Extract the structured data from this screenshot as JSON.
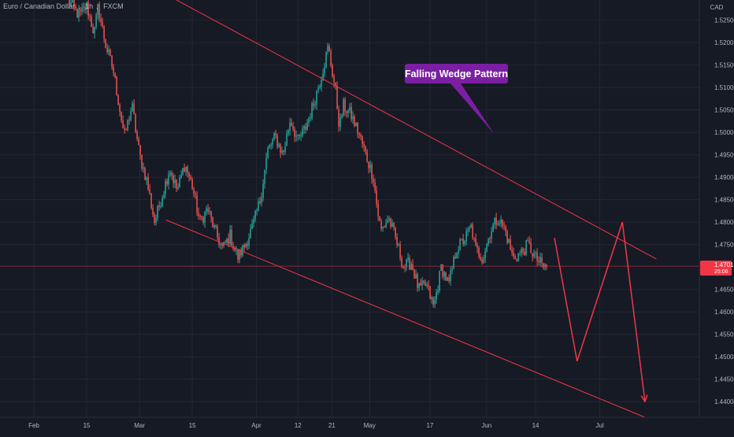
{
  "header": {
    "symbol_name": "Euro / Canadian Dollar",
    "interval": "1h",
    "exchange": "FXCM"
  },
  "chart_data": {
    "type": "candlestick",
    "title": "Euro / Canadian Dollar, 1h, FXCM",
    "currency": "CAD",
    "grid": true,
    "colors": {
      "background": "#161a25",
      "up": "#26a69a",
      "down": "#ef5350",
      "drawing": "#f23645",
      "callout": "#7b1fa2",
      "price_label": "#f23645",
      "axis_text": "#b2b5be"
    },
    "y_ticks": [
      "1.52500",
      "1.52000",
      "1.51500",
      "1.51000",
      "1.50500",
      "1.50000",
      "1.49500",
      "1.49000",
      "1.48500",
      "1.48000",
      "1.47500",
      "1.46500",
      "1.46000",
      "1.45500",
      "1.45000",
      "1.44500",
      "1.44000"
    ],
    "ylim": [
      1.4365,
      1.5295
    ],
    "x_ticks": [
      {
        "label": "Feb",
        "x": 0
      },
      {
        "label": "15",
        "x": 14
      },
      {
        "label": "Mar",
        "x": 28
      },
      {
        "label": "15",
        "x": 42
      },
      {
        "label": "Apr",
        "x": 59
      },
      {
        "label": "12",
        "x": 70
      },
      {
        "label": "21",
        "x": 79
      },
      {
        "label": "May",
        "x": 89
      },
      {
        "label": "17",
        "x": 105
      },
      {
        "label": "Jun",
        "x": 120
      },
      {
        "label": "14",
        "x": 133
      },
      {
        "label": "Jul",
        "x": 150
      }
    ],
    "current_price": {
      "value": "1.47018",
      "countdown": "25:06",
      "y": 1.47018
    },
    "price_path": [
      [
        9,
        1.5295
      ],
      [
        12,
        1.526
      ],
      [
        14,
        1.5282
      ],
      [
        16,
        1.522
      ],
      [
        17,
        1.528
      ],
      [
        19,
        1.5195
      ],
      [
        21,
        1.514
      ],
      [
        22,
        1.509
      ],
      [
        24,
        1.499
      ],
      [
        26,
        1.506
      ],
      [
        28,
        1.495
      ],
      [
        30,
        1.489
      ],
      [
        32,
        1.48
      ],
      [
        34,
        1.486
      ],
      [
        36,
        1.492
      ],
      [
        38,
        1.487
      ],
      [
        40,
        1.493
      ],
      [
        42,
        1.488
      ],
      [
        44,
        1.48
      ],
      [
        46,
        1.483
      ],
      [
        48,
        1.478
      ],
      [
        50,
        1.474
      ],
      [
        52,
        1.477
      ],
      [
        54,
        1.472
      ],
      [
        56,
        1.475
      ],
      [
        58,
        1.479
      ],
      [
        60,
        1.485
      ],
      [
        62,
        1.496
      ],
      [
        64,
        1.499
      ],
      [
        66,
        1.495
      ],
      [
        68,
        1.503
      ],
      [
        70,
        1.498
      ],
      [
        72,
        1.501
      ],
      [
        74,
        1.506
      ],
      [
        76,
        1.512
      ],
      [
        78,
        1.519
      ],
      [
        80,
        1.509
      ],
      [
        81,
        1.501
      ],
      [
        82,
        1.506
      ],
      [
        84,
        1.504
      ],
      [
        86,
        1.5
      ],
      [
        88,
        1.495
      ],
      [
        90,
        1.49
      ],
      [
        91,
        1.483
      ],
      [
        92,
        1.478
      ],
      [
        94,
        1.481
      ],
      [
        96,
        1.476
      ],
      [
        98,
        1.47
      ],
      [
        100,
        1.471
      ],
      [
        102,
        1.465
      ],
      [
        104,
        1.466
      ],
      [
        106,
        1.461
      ],
      [
        108,
        1.47
      ],
      [
        110,
        1.466
      ],
      [
        112,
        1.474
      ],
      [
        114,
        1.476
      ],
      [
        116,
        1.479
      ],
      [
        117,
        1.474
      ],
      [
        119,
        1.472
      ],
      [
        121,
        1.478
      ],
      [
        123,
        1.481
      ],
      [
        125,
        1.478
      ],
      [
        127,
        1.472
      ],
      [
        129,
        1.473
      ],
      [
        131,
        1.475
      ],
      [
        133,
        1.472
      ],
      [
        135,
        1.47
      ],
      [
        136,
        1.47
      ]
    ],
    "drawings": {
      "upper_trendline": {
        "from": [
          29,
          1.5335
        ],
        "to": [
          165,
          1.4718
        ]
      },
      "lower_trendline": {
        "from": [
          35,
          1.4805
        ],
        "to": [
          162,
          1.4365
        ]
      },
      "current_price_line": 1.47018,
      "projection_path": [
        [
          138,
          1.4765
        ],
        [
          144,
          1.449
        ],
        [
          156,
          1.48
        ],
        [
          162,
          1.44
        ]
      ]
    },
    "annotations": [
      {
        "text": "Falling Wedge Pattern",
        "anchor": [
          122,
          1.4997
        ]
      }
    ]
  }
}
